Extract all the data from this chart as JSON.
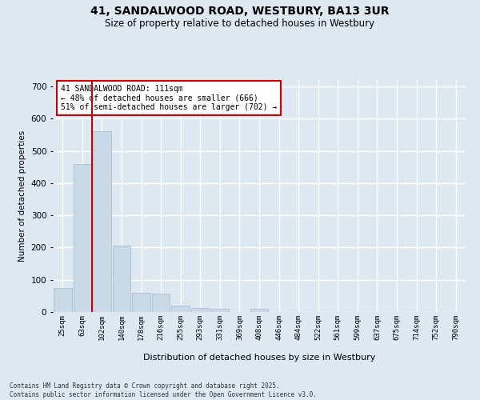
{
  "title_line1": "41, SANDALWOOD ROAD, WESTBURY, BA13 3UR",
  "title_line2": "Size of property relative to detached houses in Westbury",
  "xlabel": "Distribution of detached houses by size in Westbury",
  "ylabel": "Number of detached properties",
  "categories": [
    "25sqm",
    "63sqm",
    "102sqm",
    "140sqm",
    "178sqm",
    "216sqm",
    "255sqm",
    "293sqm",
    "331sqm",
    "369sqm",
    "408sqm",
    "446sqm",
    "484sqm",
    "522sqm",
    "561sqm",
    "599sqm",
    "637sqm",
    "675sqm",
    "714sqm",
    "752sqm",
    "790sqm"
  ],
  "values": [
    75,
    460,
    560,
    207,
    60,
    57,
    20,
    13,
    10,
    0,
    10,
    0,
    0,
    0,
    0,
    0,
    0,
    0,
    0,
    0,
    0
  ],
  "bar_color": "#c9d9e8",
  "bar_edge_color": "#a0b8cc",
  "red_line_index": 2,
  "annotation_title": "41 SANDALWOOD ROAD: 111sqm",
  "annotation_line1": "← 48% of detached houses are smaller (666)",
  "annotation_line2": "51% of semi-detached houses are larger (702) →",
  "annotation_box_color": "#ffffff",
  "annotation_box_edge": "#cc0000",
  "red_line_color": "#cc0000",
  "bg_color": "#dde8f0",
  "grid_color": "#ffffff",
  "ylim": [
    0,
    720
  ],
  "yticks": [
    0,
    100,
    200,
    300,
    400,
    500,
    600,
    700
  ],
  "footer_line1": "Contains HM Land Registry data © Crown copyright and database right 2025.",
  "footer_line2": "Contains public sector information licensed under the Open Government Licence v3.0."
}
